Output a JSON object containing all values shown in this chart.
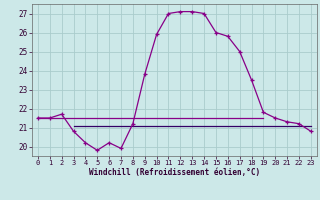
{
  "hours": [
    0,
    1,
    2,
    3,
    4,
    5,
    6,
    7,
    8,
    9,
    10,
    11,
    12,
    13,
    14,
    15,
    16,
    17,
    18,
    19,
    20,
    21,
    22,
    23
  ],
  "windchill": [
    21.5,
    21.5,
    21.7,
    20.8,
    20.2,
    19.8,
    20.2,
    19.9,
    21.2,
    23.8,
    25.9,
    27.0,
    27.1,
    27.1,
    27.0,
    26.0,
    25.8,
    25.0,
    23.5,
    21.8,
    21.5,
    21.3,
    21.2,
    20.8
  ],
  "hline1_y": 21.5,
  "hline1_x0": 0,
  "hline1_x1": 19,
  "hline2_y": 21.1,
  "hline2_x0": 3,
  "hline2_x1": 23,
  "line_color": "#880088",
  "hline1_color": "#880088",
  "hline2_color": "#330066",
  "bg_color": "#cce8e8",
  "grid_color": "#aacccc",
  "xlabel": "Windchill (Refroidissement éolien,°C)",
  "ylim": [
    19.5,
    27.5
  ],
  "xlim": [
    -0.5,
    23.5
  ],
  "ytick_labels": [
    "20",
    "21",
    "22",
    "23",
    "24",
    "25",
    "26",
    "27"
  ],
  "ytick_vals": [
    20,
    21,
    22,
    23,
    24,
    25,
    26,
    27
  ],
  "xtick_vals": [
    0,
    1,
    2,
    3,
    4,
    5,
    6,
    7,
    8,
    9,
    10,
    11,
    12,
    13,
    14,
    15,
    16,
    17,
    18,
    19,
    20,
    21,
    22,
    23
  ]
}
